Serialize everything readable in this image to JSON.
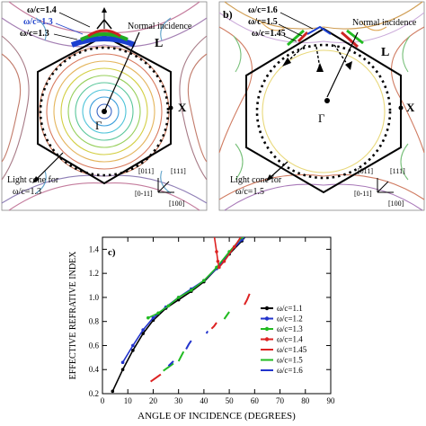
{
  "panel_a": {
    "freq_labels": [
      {
        "text": "ω/c=1.4",
        "color": "#111111"
      },
      {
        "text": "ω/c=1.3",
        "color": "#2244cc"
      },
      {
        "text": "ω/c=1.3",
        "color": "#111111"
      }
    ],
    "normal_incidence": "Normal incidence",
    "point_gamma": "Γ",
    "point_L": "L",
    "point_X": "X",
    "light_cone_line1": "Light cone for",
    "light_cone_line2": "ω/c=1.3",
    "axes": {
      "a011": "[011]",
      "a111": "[111]",
      "a0m11": "[0-11]",
      "a100": "[100]"
    }
  },
  "panel_b": {
    "panel_letter": "b)",
    "freq_labels": [
      {
        "text": "ω/c=1.6",
        "color": "#111111"
      },
      {
        "text": "ω/c=1.5",
        "color": "#111111"
      },
      {
        "text": "ω/c=1.45",
        "color": "#111111"
      }
    ],
    "normal_incidence": "Normal incidence",
    "point_gamma": "Γ",
    "point_L": "L",
    "point_X": "X",
    "light_cone_line1": "Light cone for",
    "light_cone_line2": "ω/c=1.5",
    "axes": {
      "a011": "[011]",
      "a111": "[111]",
      "a0m11": "[0-11]",
      "a100": "[100]"
    }
  },
  "panel_c": {
    "panel_letter": "c)",
    "chart_data": {
      "type": "line",
      "xlabel": "ANGLE  OF INCIDENCE (DEGREES)",
      "ylabel": "EFFECTIVE REFRATIVE INDEX",
      "xlim": [
        0,
        90
      ],
      "ylim": [
        0.2,
        1.5
      ],
      "xticks": [
        "0",
        "10",
        "20",
        "30",
        "40",
        "50",
        "60",
        "70",
        "80",
        "90"
      ],
      "yticks": [
        "0.2",
        "0.4",
        "0.6",
        "0.8",
        "1.0",
        "1.2",
        "1.4"
      ],
      "legend_position": "right",
      "series": [
        {
          "name": "ω/c=1.1",
          "color": "#000000",
          "marker": "circle",
          "points": [
            [
              4,
              0.22
            ],
            [
              8,
              0.4
            ],
            [
              12,
              0.56
            ],
            [
              16,
              0.7
            ],
            [
              20,
              0.81
            ],
            [
              25,
              0.91
            ],
            [
              30,
              0.98
            ],
            [
              35,
              1.05
            ],
            [
              40,
              1.13
            ],
            [
              45,
              1.24
            ],
            [
              50,
              1.36
            ],
            [
              55,
              1.47
            ],
            [
              58,
              1.55
            ]
          ]
        },
        {
          "name": "ω/c=1.2",
          "color": "#2233cc",
          "marker": "circle",
          "points": [
            [
              8,
              0.46
            ],
            [
              12,
              0.6
            ],
            [
              16,
              0.73
            ],
            [
              20,
              0.83
            ],
            [
              25,
              0.92
            ],
            [
              30,
              1.0
            ],
            [
              35,
              1.07
            ],
            [
              40,
              1.14
            ],
            [
              45,
              1.24
            ],
            [
              50,
              1.37
            ],
            [
              55,
              1.48
            ],
            [
              58,
              1.55
            ]
          ]
        },
        {
          "name": "ω/c=1.3",
          "color": "#22bb22",
          "marker": "circle",
          "points": [
            [
              18,
              0.83
            ],
            [
              22,
              0.87
            ],
            [
              26,
              0.93
            ],
            [
              30,
              1.0
            ],
            [
              35,
              1.06
            ],
            [
              40,
              1.14
            ],
            [
              45,
              1.25
            ],
            [
              50,
              1.38
            ],
            [
              55,
              1.5
            ],
            [
              57,
              1.55
            ]
          ]
        },
        {
          "name": "ω/c=1.4",
          "color": "#dd2222",
          "marker": "circle",
          "points": [
            [
              44,
              1.52
            ],
            [
              45,
              1.38
            ],
            [
              45.5,
              1.3
            ],
            [
              46,
              1.25
            ],
            [
              48,
              1.3
            ],
            [
              52,
              1.42
            ],
            [
              56,
              1.55
            ]
          ]
        },
        {
          "name": "ω/c=1.45",
          "color": "#dd2222",
          "marker": "none",
          "segments": [
            [
              [
                19,
                0.3
              ],
              [
                21,
                0.33
              ],
              [
                23,
                0.36
              ]
            ],
            [
              [
                43,
                0.74
              ],
              [
                44,
                0.76
              ],
              [
                45,
                0.79
              ]
            ],
            [
              [
                56,
                0.94
              ],
              [
                57,
                0.98
              ],
              [
                58,
                1.03
              ]
            ]
          ]
        },
        {
          "name": "ω/c=1.5",
          "color": "#22bb22",
          "marker": "none",
          "segments": [
            [
              [
                24,
                0.39
              ],
              [
                26,
                0.42
              ],
              [
                28,
                0.45
              ]
            ],
            [
              [
                30,
                0.47
              ],
              [
                31,
                0.51
              ],
              [
                32,
                0.55
              ]
            ],
            [
              [
                48,
                0.82
              ],
              [
                49,
                0.85
              ],
              [
                50,
                0.88
              ]
            ]
          ]
        },
        {
          "name": "ω/c=1.6",
          "color": "#2233cc",
          "marker": "none",
          "segments": [
            [
              [
                26,
                0.43
              ],
              [
                28,
                0.47
              ]
            ],
            [
              [
                33,
                0.57
              ],
              [
                34,
                0.61
              ],
              [
                35,
                0.64
              ]
            ],
            [
              [
                41,
                0.7
              ],
              [
                41.5,
                0.72
              ]
            ]
          ]
        }
      ]
    }
  }
}
